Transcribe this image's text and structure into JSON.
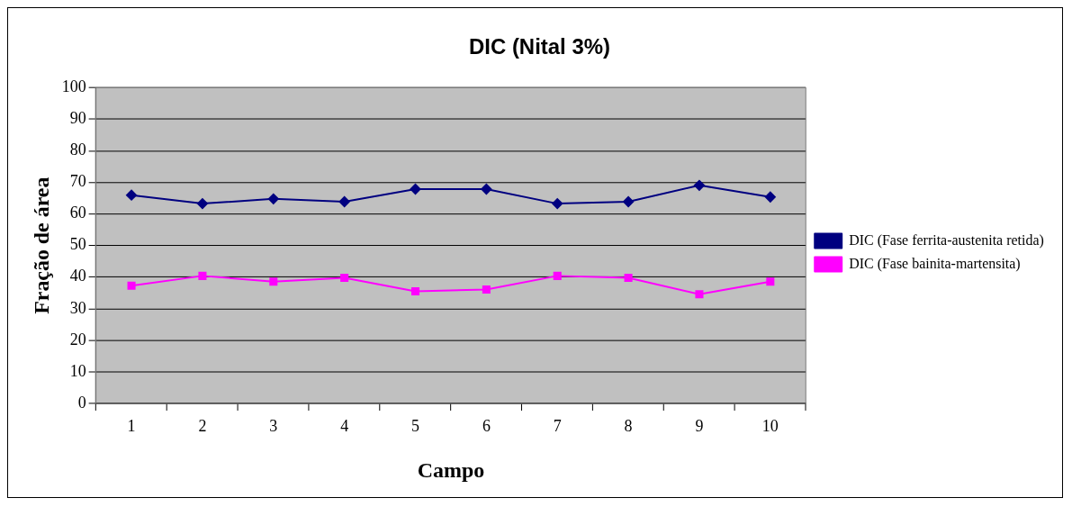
{
  "chart_data": {
    "type": "line",
    "title": "DIC (Nital 3%)",
    "xlabel": "Campo",
    "ylabel": "Fração de área",
    "categories": [
      "1",
      "2",
      "3",
      "4",
      "5",
      "6",
      "7",
      "8",
      "9",
      "10"
    ],
    "series": [
      {
        "name": "DIC (Fase ferrita-austenita retida)",
        "color": "#000080",
        "marker": "diamond",
        "values": [
          66.0,
          63.3,
          64.8,
          63.9,
          67.9,
          67.9,
          63.3,
          63.9,
          69.1,
          65.4
        ]
      },
      {
        "name": "DIC (Fase bainita-martensita)",
        "color": "#ff00ff",
        "marker": "square",
        "values": [
          37.3,
          40.4,
          38.6,
          39.8,
          35.5,
          36.1,
          40.4,
          39.8,
          34.6,
          38.6
        ]
      }
    ],
    "ylim": [
      0,
      100
    ],
    "yticks": [
      0,
      10,
      20,
      30,
      40,
      50,
      60,
      70,
      80,
      90,
      100
    ],
    "grid": "y",
    "legend": "right",
    "line_style": "solid"
  }
}
